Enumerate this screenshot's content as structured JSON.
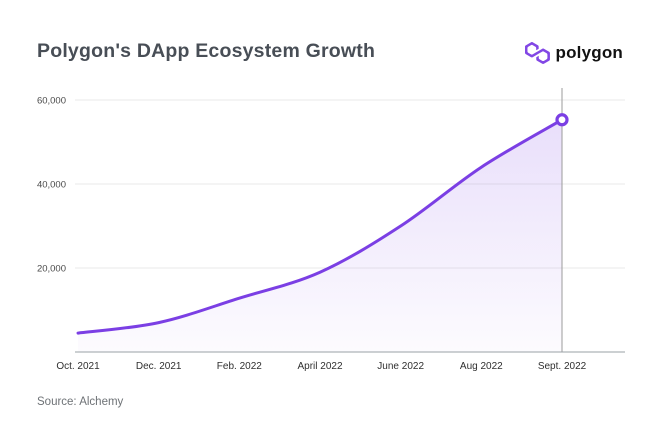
{
  "header": {
    "title": "Polygon's DApp Ecosystem Growth"
  },
  "logo": {
    "wordmark": "polygon",
    "icon_color": "#8247E5",
    "wordmark_color": "#121212"
  },
  "source": {
    "label": "Source: Alchemy"
  },
  "chart_data": {
    "type": "area",
    "title": "Polygon's DApp Ecosystem Growth",
    "categories": [
      "Oct. 2021",
      "Dec. 2021",
      "Feb. 2022",
      "April 2022",
      "June 2022",
      "Aug 2022",
      "Sept. 2022"
    ],
    "values": [
      4500,
      7000,
      12800,
      19000,
      30000,
      44000,
      55300
    ],
    "xlabel": "",
    "ylabel": "",
    "yticks": [
      20000,
      40000,
      60000
    ],
    "ytick_labels": [
      "20,000",
      "40,000",
      "60,000"
    ],
    "ylim": [
      0,
      63000
    ],
    "grid": true,
    "legend": false,
    "end_marker": true,
    "vertical_guide_at_last_point": true,
    "line_color": "#7B3FE4",
    "marker_stroke_color": "#7B3FE4",
    "marker_fill_color": "#FFFFFF",
    "fill_color": "#7B3FE4",
    "fill_opacity_top": 0.18,
    "fill_opacity_bottom": 0.02,
    "grid_color": "#EAEAEA",
    "axis_color": "#9AA0A6",
    "guide_color": "#9B9B9B",
    "tick_label_color": "#4A4A4A"
  }
}
